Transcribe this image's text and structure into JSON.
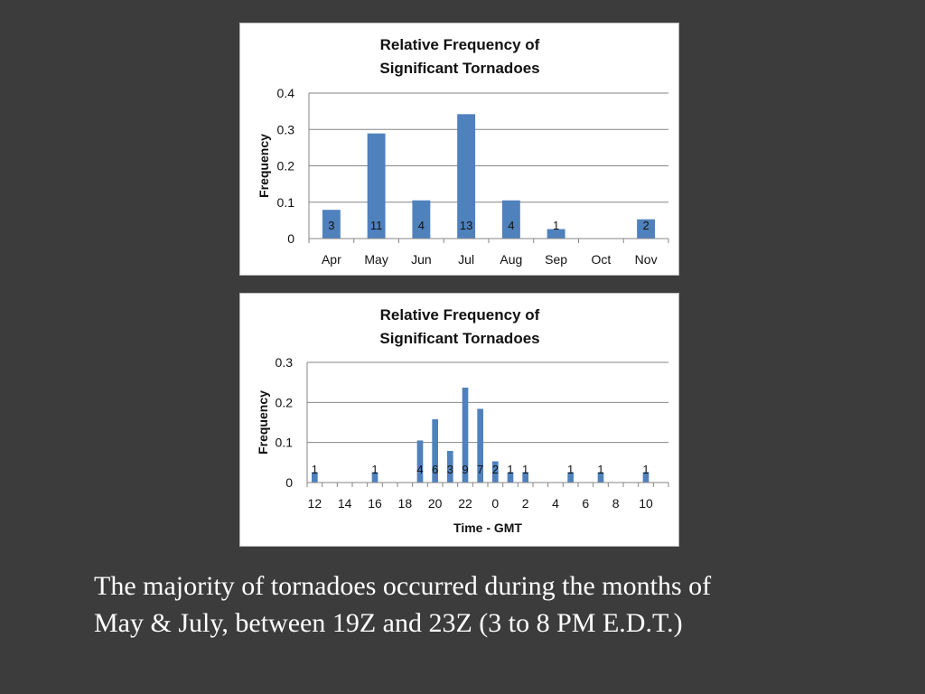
{
  "caption": {
    "line1": "The majority of tornadoes occurred during the months of",
    "line2": "May & July, between 19Z and 23Z (3 to 8 PM E.D.T.)"
  },
  "chart_data": [
    {
      "type": "bar",
      "title_lines": [
        "Relative Frequency of",
        "Significant Tornadoes"
      ],
      "xlabel": "",
      "ylabel": "Frequency",
      "ylim": [
        0,
        0.4
      ],
      "yticks": [
        0,
        0.1,
        0.2,
        0.3,
        0.4
      ],
      "ytick_labels": [
        "0",
        "0.1",
        "0.2",
        "0.3",
        "0.4"
      ],
      "grid": true,
      "legend": "none",
      "bar_color": "#4f81bd",
      "categories": [
        "Apr",
        "May",
        "Jun",
        "Jul",
        "Aug",
        "Sep",
        "Oct",
        "Nov"
      ],
      "values": [
        0.079,
        0.289,
        0.105,
        0.342,
        0.105,
        0.026,
        0,
        0.053
      ],
      "data_labels": [
        "3",
        "11",
        "4",
        "13",
        "4",
        "1",
        "",
        "2"
      ]
    },
    {
      "type": "bar",
      "title_lines": [
        "Relative Frequency of",
        "Significant Tornadoes"
      ],
      "xlabel": "Time - GMT",
      "ylabel": "Frequency",
      "ylim": [
        0,
        0.3
      ],
      "yticks": [
        0,
        0.1,
        0.2,
        0.3
      ],
      "ytick_labels": [
        "0",
        "0.1",
        "0.2",
        "0.3"
      ],
      "grid": true,
      "legend": "none",
      "bar_color": "#4f81bd",
      "categories": [
        "12",
        "13",
        "14",
        "15",
        "16",
        "17",
        "18",
        "19",
        "20",
        "21",
        "22",
        "23",
        "0",
        "1",
        "2",
        "3",
        "4",
        "5",
        "6",
        "7",
        "8",
        "9",
        "10",
        "11"
      ],
      "tick_labels": [
        "12",
        "",
        "14",
        "",
        "16",
        "",
        "18",
        "",
        "20",
        "",
        "22",
        "",
        "0",
        "",
        "2",
        "",
        "4",
        "",
        "6",
        "",
        "8",
        "",
        "10",
        ""
      ],
      "values": [
        0.026,
        0,
        0,
        0,
        0.026,
        0,
        0,
        0.105,
        0.158,
        0.079,
        0.237,
        0.184,
        0.053,
        0.026,
        0.026,
        0,
        0,
        0.026,
        0,
        0.026,
        0,
        0,
        0.026,
        0
      ],
      "data_labels": [
        "1",
        "",
        "",
        "",
        "1",
        "",
        "",
        "4",
        "6",
        "3",
        "9",
        "7",
        "2",
        "1",
        "1",
        "",
        "",
        "1",
        "",
        "1",
        "",
        "",
        "1",
        ""
      ]
    }
  ]
}
